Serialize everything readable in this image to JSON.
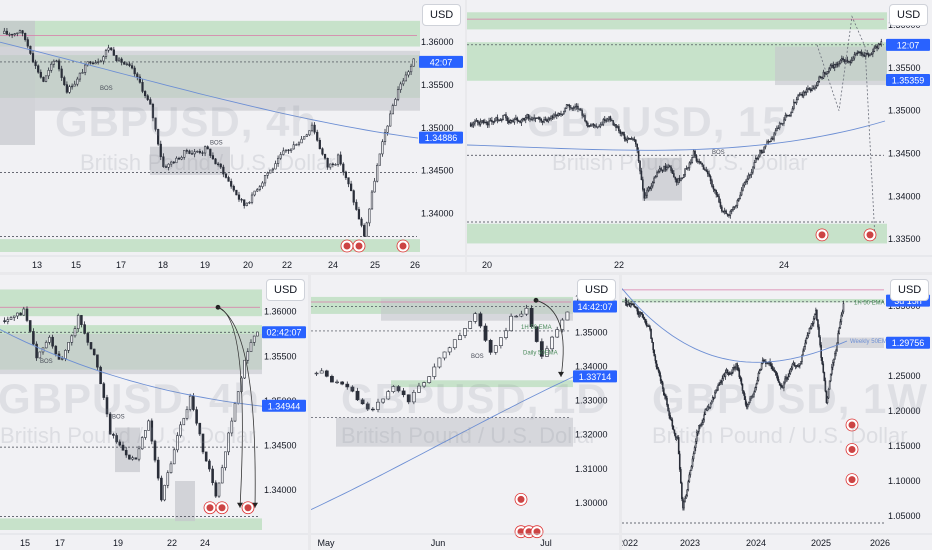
{
  "colors": {
    "candle": "#2a2e39",
    "zone_green": "#b8dcbc",
    "zone_gray": "#c4c6cc",
    "ema": "#6d8fd4",
    "badge": "#2962ff",
    "pink": "#d97aa8"
  },
  "chart_data": [
    {
      "id": "p1",
      "type": "candlestick",
      "currency": "USD",
      "ylim": [
        1.3355,
        1.364
      ],
      "y_ticks": [
        {
          "label": "1.36000",
          "value": 1.36
        },
        {
          "label": "1.35500",
          "value": 1.355
        },
        {
          "label": "1.35000",
          "value": 1.35
        },
        {
          "label": "1.34500",
          "value": 1.345
        },
        {
          "label": "1.34000",
          "value": 1.34
        }
      ],
      "x_ticks": [
        "13",
        "15",
        "17",
        "18",
        "19",
        "20",
        "22",
        "24",
        "25",
        "26"
      ],
      "badges": [
        {
          "text": "42:07",
          "value": 1.3577
        },
        {
          "text": "1.34886",
          "value": 1.34886
        }
      ],
      "annotations": [
        "BOS",
        "BOS"
      ],
      "watermark_symbol": "GBPUSD, 4h",
      "watermark_sub": "British Pound / U.S. Dollar",
      "segments": [
        [
          1.361,
          2
        ],
        [
          1.3615,
          5
        ],
        [
          1.359,
          4
        ],
        [
          1.3555,
          5
        ],
        [
          1.358,
          5
        ],
        [
          1.3545,
          4
        ],
        [
          1.3575,
          8
        ],
        [
          1.3595,
          8
        ],
        [
          1.357,
          8
        ],
        [
          1.3525,
          8
        ],
        [
          1.3455,
          5
        ],
        [
          1.347,
          8
        ],
        [
          1.3475,
          8
        ],
        [
          1.3455,
          5
        ],
        [
          1.341,
          10
        ],
        [
          1.3445,
          8
        ],
        [
          1.3475,
          10
        ],
        [
          1.3505,
          8
        ],
        [
          1.3455,
          6
        ],
        [
          1.3465,
          4
        ],
        [
          1.3415,
          6
        ],
        [
          1.3375,
          4
        ],
        [
          1.3455,
          5
        ],
        [
          1.3545,
          8
        ],
        [
          1.3578,
          6
        ]
      ]
    },
    {
      "id": "p2",
      "type": "candlestick",
      "currency": "USD",
      "ylim": [
        1.3335,
        1.362
      ],
      "y_ticks": [
        {
          "label": "1.36000",
          "value": 1.36
        },
        {
          "label": "1.35500",
          "value": 1.355
        },
        {
          "label": "1.35000",
          "value": 1.35
        },
        {
          "label": "1.34500",
          "value": 1.345
        },
        {
          "label": "1.34000",
          "value": 1.34
        },
        {
          "label": "1.33500",
          "value": 1.335
        }
      ],
      "x_ticks": [
        "20",
        "22",
        "24"
      ],
      "badges": [
        {
          "text": "12:07",
          "value": 1.3577
        },
        {
          "text": "1.35359",
          "value": 1.35359
        }
      ],
      "annotations": [
        "BOS"
      ],
      "watermark_symbol": "GBPUSD, 15",
      "watermark_sub": "British Pound / U.S. Dollar",
      "segments": [
        [
          1.3485,
          4
        ],
        [
          1.3495,
          20
        ],
        [
          1.349,
          25
        ],
        [
          1.3505,
          20
        ],
        [
          1.3485,
          15
        ],
        [
          1.3495,
          15
        ],
        [
          1.3455,
          20
        ],
        [
          1.34,
          5
        ],
        [
          1.3435,
          15
        ],
        [
          1.342,
          10
        ],
        [
          1.345,
          10
        ],
        [
          1.3405,
          15
        ],
        [
          1.3375,
          10
        ],
        [
          1.3405,
          8
        ],
        [
          1.3455,
          15
        ],
        [
          1.3515,
          25
        ],
        [
          1.3545,
          20
        ],
        [
          1.3565,
          25
        ],
        [
          1.3578,
          15
        ]
      ]
    },
    {
      "id": "p3",
      "type": "candlestick",
      "currency": "USD",
      "ylim": [
        1.3355,
        1.363
      ],
      "y_ticks": [
        {
          "label": "1.36000",
          "value": 1.36
        },
        {
          "label": "1.35500",
          "value": 1.355
        },
        {
          "label": "1.35000",
          "value": 1.35
        },
        {
          "label": "1.34500",
          "value": 1.345
        },
        {
          "label": "1.34000",
          "value": 1.34
        }
      ],
      "x_ticks": [
        "15",
        "17",
        "19",
        "22",
        "24"
      ],
      "badges": [
        {
          "text": "02:42:07",
          "value": 1.3577
        },
        {
          "text": "1.34944",
          "value": 1.34944
        }
      ],
      "annotations": [
        "BOS",
        "BOS"
      ],
      "watermark_symbol": "GBPUSD, 4h",
      "watermark_sub": "British Pound / U.S. Dollar",
      "segments": [
        [
          1.359,
          3
        ],
        [
          1.36,
          4
        ],
        [
          1.3545,
          4
        ],
        [
          1.357,
          4
        ],
        [
          1.3545,
          4
        ],
        [
          1.3595,
          5
        ],
        [
          1.3555,
          5
        ],
        [
          1.3465,
          5
        ],
        [
          1.3445,
          4
        ],
        [
          1.3435,
          4
        ],
        [
          1.3475,
          4
        ],
        [
          1.339,
          4
        ],
        [
          1.346,
          5
        ],
        [
          1.3505,
          4
        ],
        [
          1.3445,
          4
        ],
        [
          1.3395,
          4
        ],
        [
          1.3465,
          4
        ],
        [
          1.3545,
          5
        ],
        [
          1.358,
          4
        ]
      ]
    },
    {
      "id": "p4",
      "type": "candlestick",
      "currency": "USD",
      "ylim": [
        1.292,
        1.364
      ],
      "y_ticks": [
        {
          "label": "1.36000",
          "value": 1.36
        },
        {
          "label": "1.35000",
          "value": 1.35
        },
        {
          "label": "1.34000",
          "value": 1.34
        },
        {
          "label": "1.33000",
          "value": 1.33
        },
        {
          "label": "1.32000",
          "value": 1.32
        },
        {
          "label": "1.31000",
          "value": 1.31
        },
        {
          "label": "1.30000",
          "value": 1.3
        }
      ],
      "x_ticks": [
        "May",
        "Jun",
        "Jul"
      ],
      "badges": [
        {
          "text": "14:42:07",
          "value": 1.3577
        },
        {
          "text": "1.33714",
          "value": 1.33714
        }
      ],
      "annotations": [
        "BOS",
        "Daily 50EMA",
        "1H 50 EMA"
      ],
      "watermark_symbol": "GBPUSD, 1D",
      "watermark_sub": "British Pound / U.S. Dollar",
      "segments": [
        [
          1.338,
          2
        ],
        [
          1.334,
          4
        ],
        [
          1.331,
          3
        ],
        [
          1.3265,
          3
        ],
        [
          1.3335,
          4
        ],
        [
          1.329,
          3
        ],
        [
          1.338,
          4
        ],
        [
          1.3485,
          5
        ],
        [
          1.355,
          4
        ],
        [
          1.3445,
          3
        ],
        [
          1.354,
          4
        ],
        [
          1.3565,
          3
        ],
        [
          1.3435,
          3
        ],
        [
          1.349,
          2
        ],
        [
          1.356,
          3
        ]
      ]
    },
    {
      "id": "p5",
      "type": "candlestick",
      "currency": "USD",
      "ylim": [
        1.03,
        1.38
      ],
      "y_ticks": [
        {
          "label": "1.35000",
          "value": 1.35
        },
        {
          "label": "1.30000",
          "value": 1.3
        },
        {
          "label": "1.25000",
          "value": 1.25
        },
        {
          "label": "1.20000",
          "value": 1.2
        },
        {
          "label": "1.15000",
          "value": 1.15
        },
        {
          "label": "1.10000",
          "value": 1.1
        },
        {
          "label": "1.05000",
          "value": 1.05
        }
      ],
      "x_ticks": [
        "2022",
        "2023",
        "2024",
        "2025",
        "2026"
      ],
      "badges": [
        {
          "text": "3d 15h",
          "value": 1.3577
        },
        {
          "text": "1.29756",
          "value": 1.29756
        }
      ],
      "annotations": [
        "1H 50 EMA",
        "Weekly 50EMA"
      ],
      "watermark_symbol": "GBPUSD, 1W",
      "watermark_sub": "British Pound / U.S. Dollar",
      "segments": [
        [
          1.355,
          2
        ],
        [
          1.35,
          8
        ],
        [
          1.305,
          15
        ],
        [
          1.21,
          15
        ],
        [
          1.16,
          10
        ],
        [
          1.06,
          5
        ],
        [
          1.18,
          15
        ],
        [
          1.24,
          20
        ],
        [
          1.265,
          15
        ],
        [
          1.21,
          10
        ],
        [
          1.275,
          15
        ],
        [
          1.24,
          20
        ],
        [
          1.27,
          15
        ],
        [
          1.34,
          15
        ],
        [
          1.21,
          10
        ],
        [
          1.28,
          8
        ],
        [
          1.355,
          8
        ]
      ]
    }
  ]
}
